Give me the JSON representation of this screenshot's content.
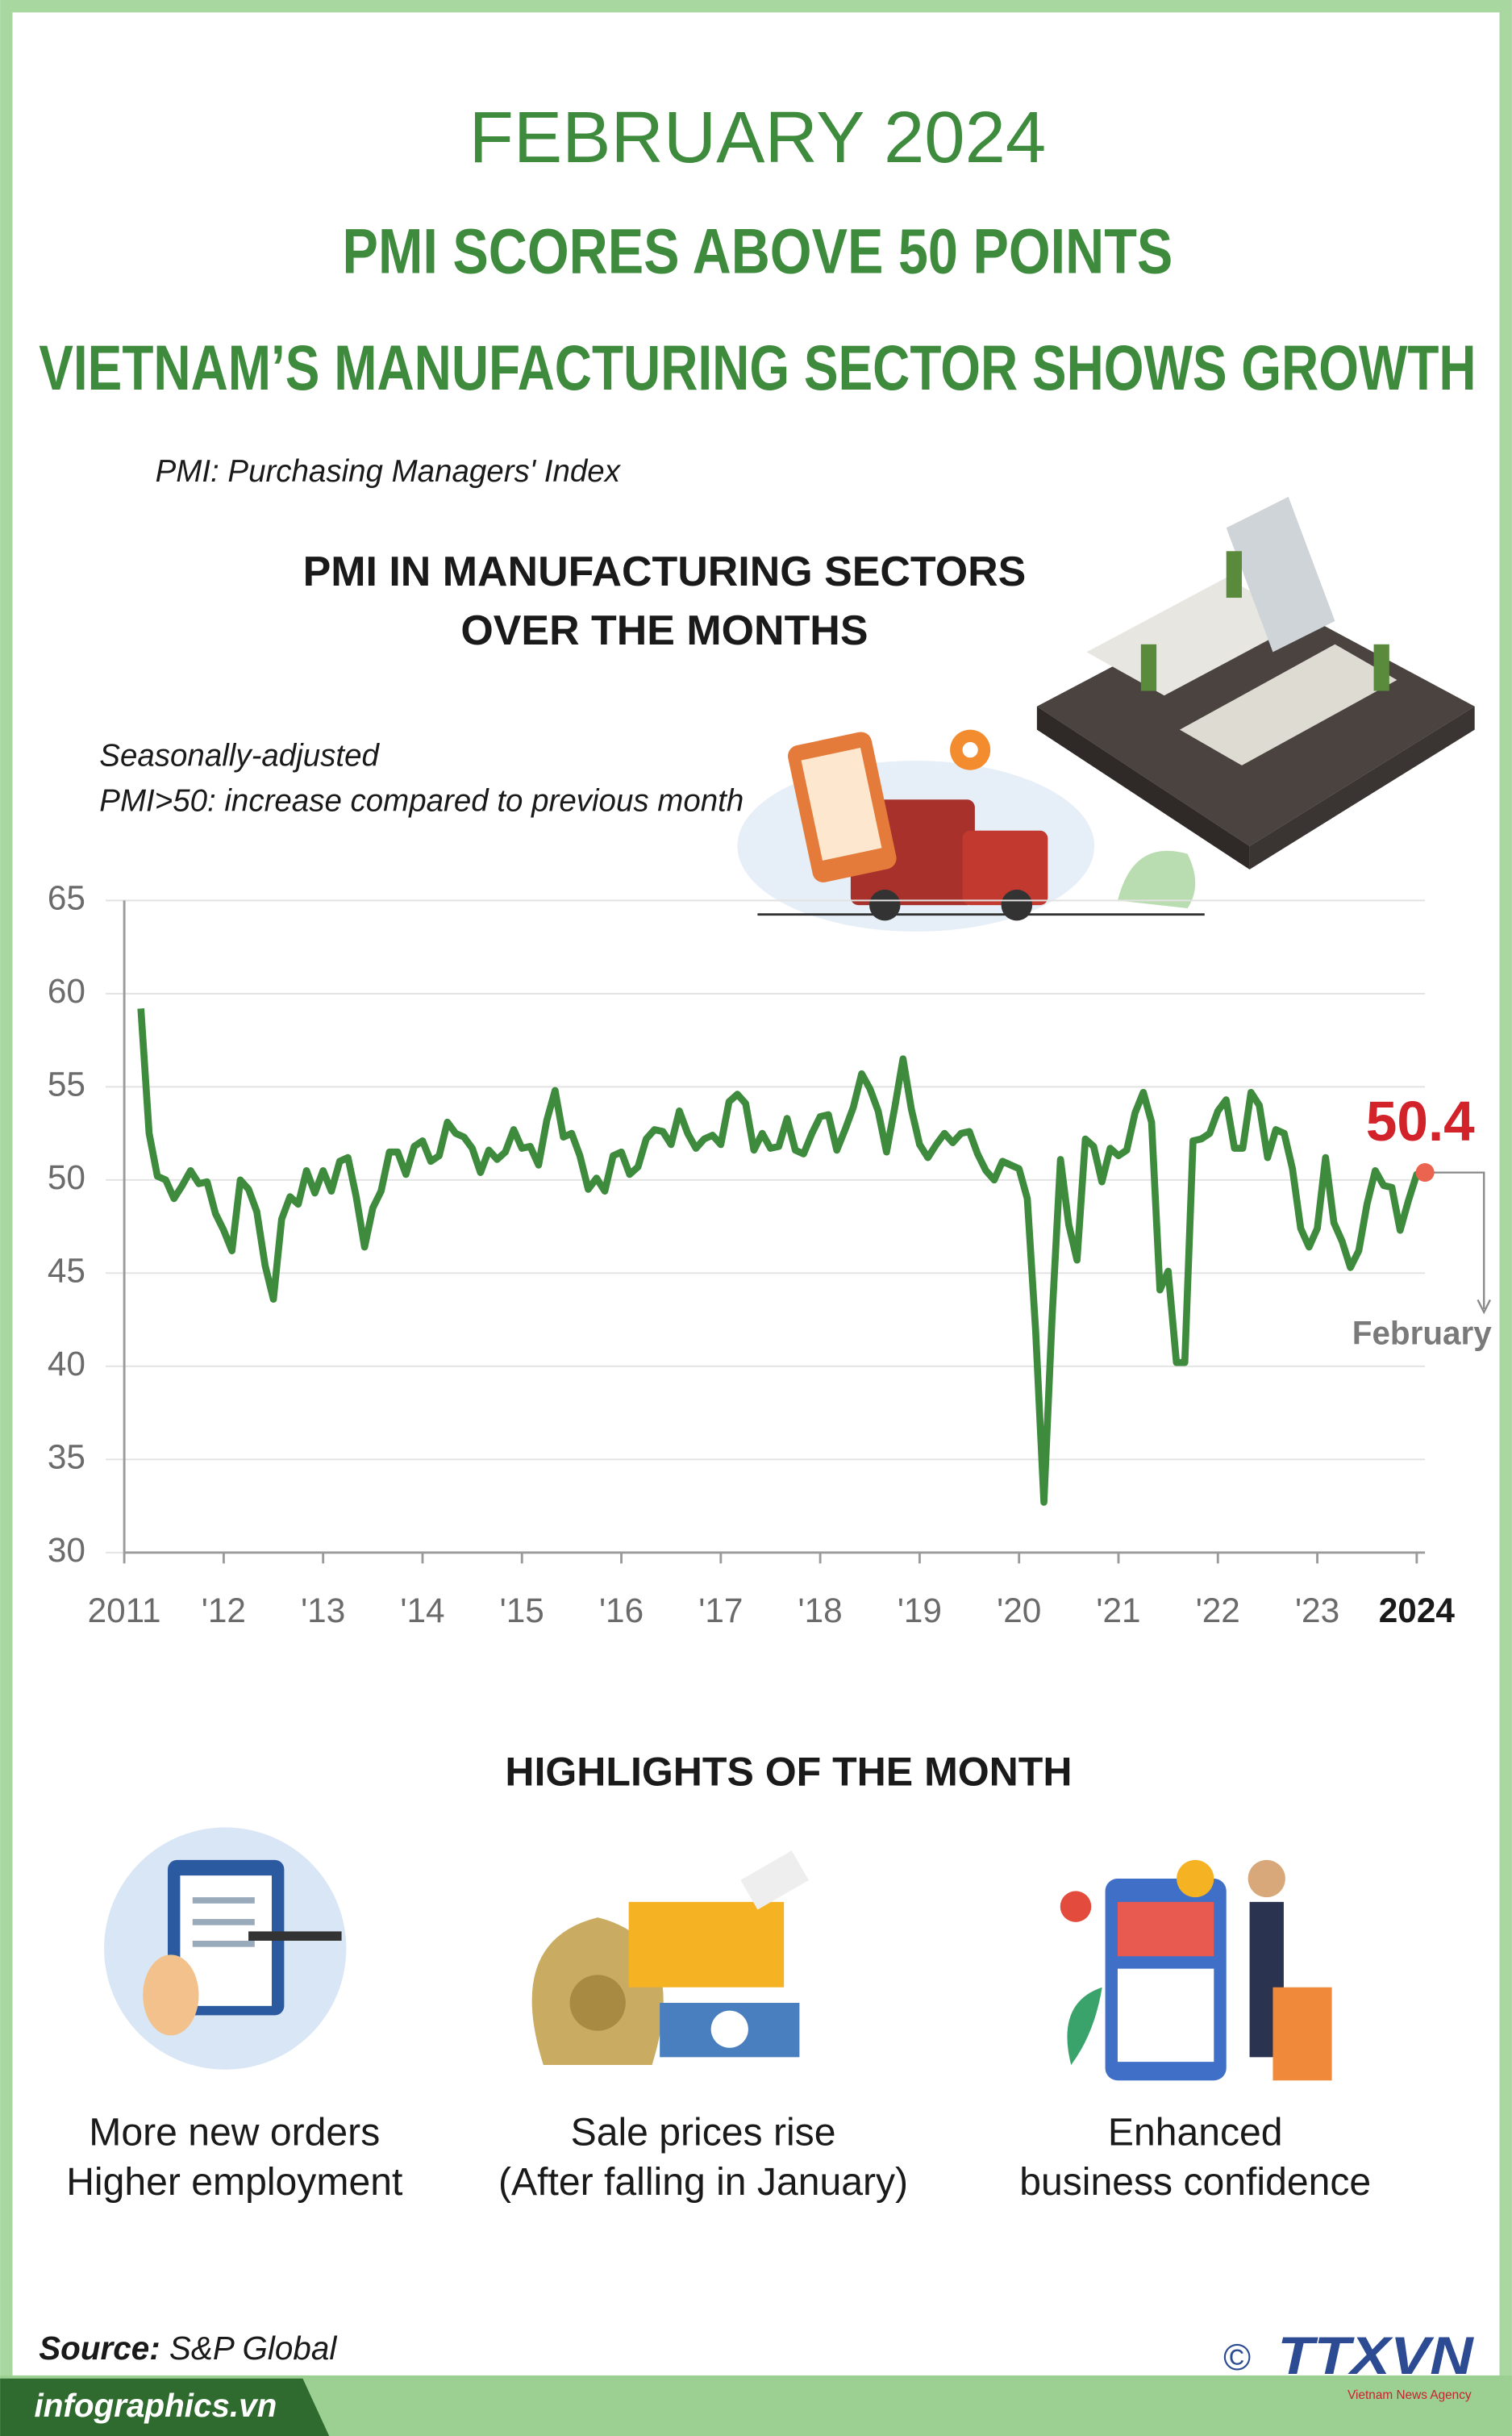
{
  "header": {
    "date": "FEBRUARY 2024",
    "headline": "PMI SCORES ABOVE 50 POINTS",
    "subheadline": "VIETNAM’S MANUFACTURING SECTOR SHOWS GROWTH",
    "definition": "PMI: Purchasing Managers' Index"
  },
  "chart_data": {
    "type": "line",
    "title": [
      "PMI IN MANUFACTURING SECTORS",
      "OVER THE MONTHS"
    ],
    "notes": [
      "Seasonally-adjusted",
      "PMI>50: increase compared to previous month"
    ],
    "x": [
      2011.167,
      2011.25,
      2011.333,
      2011.417,
      2011.5,
      2011.583,
      2011.667,
      2011.75,
      2011.833,
      2011.917,
      2012,
      2012.083,
      2012.167,
      2012.25,
      2012.333,
      2012.417,
      2012.5,
      2012.583,
      2012.667,
      2012.75,
      2012.833,
      2012.917,
      2013,
      2013.083,
      2013.167,
      2013.25,
      2013.333,
      2013.417,
      2013.5,
      2013.583,
      2013.667,
      2013.75,
      2013.833,
      2013.917,
      2014,
      2014.083,
      2014.167,
      2014.25,
      2014.333,
      2014.417,
      2014.5,
      2014.583,
      2014.667,
      2014.75,
      2014.833,
      2014.917,
      2015,
      2015.083,
      2015.167,
      2015.25,
      2015.333,
      2015.417,
      2015.5,
      2015.583,
      2015.667,
      2015.75,
      2015.833,
      2015.917,
      2016,
      2016.083,
      2016.167,
      2016.25,
      2016.333,
      2016.417,
      2016.5,
      2016.583,
      2016.667,
      2016.75,
      2016.833,
      2016.917,
      2017,
      2017.083,
      2017.167,
      2017.25,
      2017.333,
      2017.417,
      2017.5,
      2017.583,
      2017.667,
      2017.75,
      2017.833,
      2017.917,
      2018,
      2018.083,
      2018.167,
      2018.25,
      2018.333,
      2018.417,
      2018.5,
      2018.583,
      2018.667,
      2018.75,
      2018.833,
      2018.917,
      2019,
      2019.083,
      2019.167,
      2019.25,
      2019.333,
      2019.417,
      2019.5,
      2019.583,
      2019.667,
      2019.75,
      2019.833,
      2019.917,
      2020,
      2020.083,
      2020.167,
      2020.25,
      2020.333,
      2020.417,
      2020.5,
      2020.583,
      2020.667,
      2020.75,
      2020.833,
      2020.917,
      2021,
      2021.083,
      2021.167,
      2021.25,
      2021.333,
      2021.417,
      2021.5,
      2021.583,
      2021.667,
      2021.75,
      2021.833,
      2021.917,
      2022,
      2022.083,
      2022.167,
      2022.25,
      2022.333,
      2022.417,
      2022.5,
      2022.583,
      2022.667,
      2022.75,
      2022.833,
      2022.917,
      2023,
      2023.083,
      2023.167,
      2023.25,
      2023.333,
      2023.417,
      2023.5,
      2023.583,
      2023.667,
      2023.75,
      2023.833,
      2023.917,
      2024,
      2024.083
    ],
    "series": [
      {
        "color": "#3e8b3e",
        "values": [
          59.2,
          52.5,
          50.2,
          50.0,
          49.0,
          49.7,
          50.5,
          49.8,
          49.9,
          48.2,
          47.3,
          46.2,
          50.0,
          49.5,
          48.3,
          45.4,
          43.6,
          47.9,
          49.1,
          48.7,
          50.5,
          49.3,
          50.5,
          49.4,
          51.0,
          51.2,
          49.1,
          46.4,
          48.5,
          49.4,
          51.5,
          51.5,
          50.3,
          51.8,
          52.1,
          51.0,
          51.3,
          53.1,
          52.5,
          52.3,
          51.7,
          50.4,
          51.6,
          51.1,
          51.5,
          52.7,
          51.7,
          51.8,
          50.8,
          53.2,
          54.8,
          52.3,
          52.5,
          51.3,
          49.5,
          50.1,
          49.4,
          51.3,
          51.5,
          50.3,
          50.7,
          52.2,
          52.7,
          52.6,
          51.9,
          53.7,
          52.5,
          51.7,
          52.2,
          52.4,
          51.9,
          54.2,
          54.6,
          54.1,
          51.6,
          52.5,
          51.7,
          51.8,
          53.3,
          51.6,
          51.4,
          52.5,
          53.4,
          53.5,
          51.6,
          52.7,
          53.9,
          55.7,
          54.9,
          53.7,
          51.5,
          53.9,
          56.5,
          53.8,
          51.9,
          51.2,
          51.9,
          52.5,
          52.0,
          52.5,
          52.6,
          51.4,
          50.5,
          50.0,
          51.0,
          50.8,
          50.6,
          49.0,
          41.9,
          32.7,
          42.7,
          51.1,
          47.6,
          45.7,
          52.2,
          51.8,
          49.9,
          51.7,
          51.3,
          51.6,
          53.6,
          54.7,
          53.1,
          44.1,
          45.1,
          40.2,
          40.2,
          52.1,
          52.2,
          52.5,
          53.7,
          54.3,
          51.7,
          51.7,
          54.7,
          54.0,
          51.2,
          52.7,
          52.5,
          50.6,
          47.4,
          46.4,
          47.4,
          51.2,
          47.7,
          46.7,
          45.3,
          46.2,
          48.7,
          50.5,
          49.7,
          49.6,
          47.3,
          48.9,
          50.3,
          50.4
        ]
      }
    ],
    "annotation": "February",
    "highlight_color": "#d2232a",
    "xlim": [
      2011,
      2024.083
    ],
    "xticks": [
      2011,
      {
        "value": 2012,
        "label": "'12"
      },
      {
        "value": 2013,
        "label": "'13"
      },
      {
        "value": 2014,
        "label": "'14"
      },
      {
        "value": 2015,
        "label": "'15"
      },
      {
        "value": 2016,
        "label": "'16"
      },
      {
        "value": 2017,
        "label": "'17"
      },
      {
        "value": 2018,
        "label": "'18"
      },
      {
        "value": 2019,
        "label": "'19"
      },
      {
        "value": 2020,
        "label": "'20"
      },
      {
        "value": 2021,
        "label": "'21"
      },
      {
        "value": 2022,
        "label": "'22"
      },
      {
        "value": 2023,
        "label": "'23"
      },
      2024
    ],
    "ylim": [
      30,
      65
    ],
    "yticks": [
      30,
      35,
      40,
      45,
      50,
      55,
      60,
      65
    ],
    "grid": true
  },
  "highlights": {
    "title": "HIGHLIGHTS OF THE MONTH",
    "items": [
      [
        "More new orders",
        "Higher employment"
      ],
      [
        "Sale prices rise",
        "(After falling in January)"
      ],
      [
        "Enhanced",
        "business confidence"
      ]
    ]
  },
  "footer": {
    "source_label": "Source:",
    "source": "S&P Global",
    "website": "infographics.vn",
    "copyright": "©",
    "logo": "TTXVN",
    "agency": "Vietnam News Agency"
  }
}
